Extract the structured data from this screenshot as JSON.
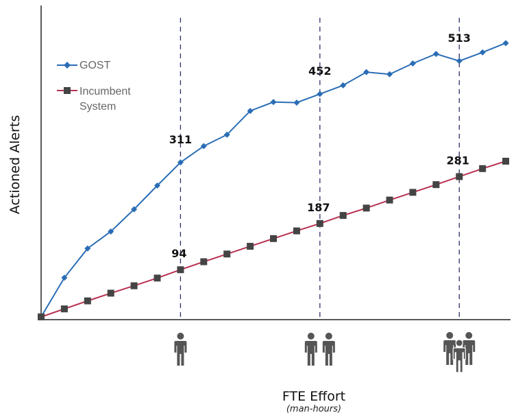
{
  "chart_data": {
    "type": "line",
    "title": "",
    "xlabel": "FTE Effort",
    "xlabel_sub": "(man-hours)",
    "ylabel": "Actioned Alerts",
    "grid": false,
    "legend_position": "top-left",
    "x": [
      0,
      1,
      2,
      3,
      4,
      5,
      6,
      7,
      8,
      9,
      10,
      11,
      12,
      13,
      14,
      15,
      16,
      17,
      18,
      19,
      20
    ],
    "series": [
      {
        "name": "GOST",
        "color": "#2a6db5",
        "marker": "diamond",
        "values": [
          0,
          127,
          222,
          277,
          349,
          426,
          501,
          554,
          591,
          668,
          697,
          695,
          723,
          751,
          794,
          787,
          822,
          853,
          830,
          858,
          888
        ]
      },
      {
        "name": "Incumbent\nSystem",
        "color": "#b8304f",
        "marker": "square",
        "values": [
          0,
          26,
          52,
          77,
          101,
          126,
          153,
          179,
          204,
          229,
          254,
          279,
          303,
          329,
          353,
          379,
          404,
          429,
          455,
          481,
          505
        ]
      }
    ],
    "markers": [
      {
        "x": 6,
        "people": 1,
        "gost_label": "311",
        "incumbent_label": "94"
      },
      {
        "x": 12,
        "people": 2,
        "gost_label": "452",
        "incumbent_label": "187"
      },
      {
        "x": 18,
        "people": 3,
        "gost_label": "513",
        "incumbent_label": "281"
      }
    ],
    "xlim": [
      0,
      20.5
    ],
    "ylim": [
      0,
      1010
    ]
  }
}
